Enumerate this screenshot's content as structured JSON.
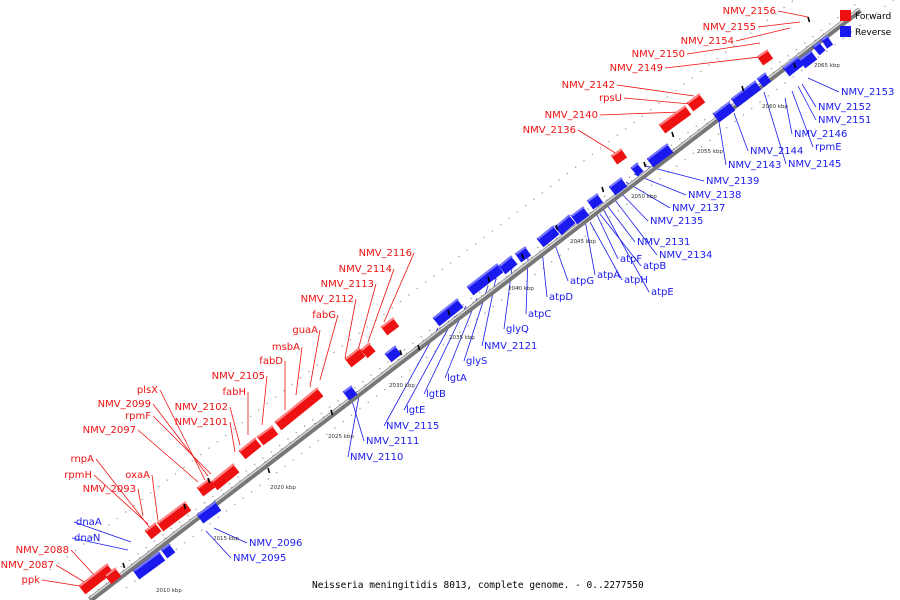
{
  "caption": "Neisseria meningitidis 8013, complete genome. - 0..2277550",
  "legend": [
    {
      "label": "Forward",
      "color": "#ee1111"
    },
    {
      "label": "Reverse",
      "color": "#1a1aee"
    }
  ],
  "colors": {
    "forward": "#ee1111",
    "reverse": "#1a1aee",
    "axis": "#777777"
  },
  "ticks": [
    "2010 kbp",
    "2015 kbp",
    "2020 kbp",
    "2025 kbp",
    "2030 kbp",
    "2035 kbp",
    "2040 kbp",
    "2045 kbp",
    "2050 kbp",
    "2055 kbp",
    "2060 kbp",
    "2065 kbp"
  ],
  "forward_labels": [
    "NMV_2156",
    "NMV_2155",
    "NMV_2154",
    "NMV_2150",
    "NMV_2149",
    "NMV_2142",
    "rpsU",
    "NMV_2140",
    "NMV_2136",
    "NMV_2116",
    "NMV_2114",
    "NMV_2113",
    "NMV_2112",
    "fabG",
    "guaA",
    "msbA",
    "fabD",
    "NMV_2105",
    "fabH",
    "plsX",
    "NMV_2099",
    "rpmF",
    "NMV_2102",
    "NMV_2101",
    "NMV_2097",
    "rnpA",
    "rpmH",
    "oxaA",
    "NMV_2093",
    "NMV_2088",
    "NMV_2087",
    "ppk"
  ],
  "reverse_labels": [
    "NMV_2153",
    "NMV_2152",
    "NMV_2151",
    "NMV_2146",
    "rpmE",
    "NMV_2144",
    "NMV_2143",
    "NMV_2145",
    "NMV_2139",
    "NMV_2138",
    "NMV_2137",
    "NMV_2135",
    "NMV_2131",
    "NMV_2134",
    "atpB",
    "atpF",
    "atpA",
    "atpH",
    "atpE",
    "atpG",
    "atpD",
    "atpC",
    "glyQ",
    "NMV_2121",
    "glyS",
    "lgtA",
    "lgtB",
    "lgtE",
    "NMV_2115",
    "NMV_2111",
    "NMV_2110",
    "dnaA",
    "dnaN",
    "NMV_2096",
    "NMV_2095"
  ]
}
